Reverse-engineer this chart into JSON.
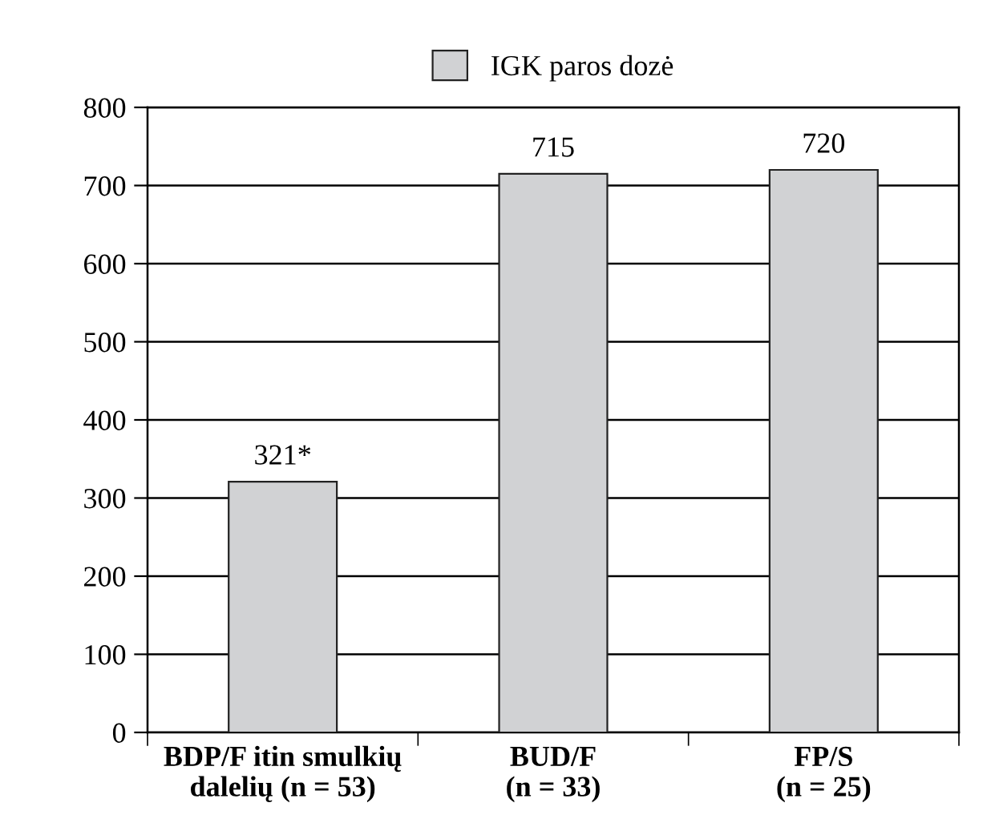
{
  "chart_data": {
    "type": "bar",
    "categories": [
      "BDP/F itin smulkių\ndalelių (n = 53)",
      "BUD/F\n(n = 33)",
      "FP/S\n(n = 25)"
    ],
    "series": [
      {
        "name": "IGK paros dozė",
        "color": "#d1d2d4",
        "values": [
          321,
          715,
          720
        ],
        "value_labels": [
          "321*",
          "715",
          "720"
        ]
      }
    ],
    "ylim": [
      0,
      800
    ],
    "yticks": [
      0,
      100,
      200,
      300,
      400,
      500,
      600,
      700,
      800
    ],
    "grid": "y",
    "legend": "top"
  }
}
